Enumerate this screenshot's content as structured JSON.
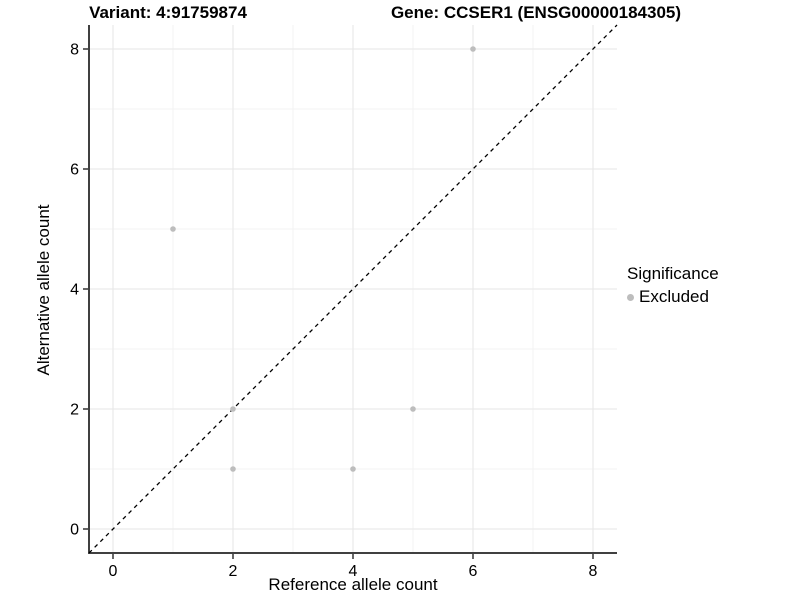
{
  "chart_data": {
    "type": "scatter",
    "title_left": "Variant: 4:91759874",
    "title_right": "Gene: CCSER1 (ENSG00000184305)",
    "xlabel": "Reference allele count",
    "ylabel": "Alternative allele count",
    "xlim": [
      -0.4,
      8.4
    ],
    "ylim": [
      -0.4,
      8.4
    ],
    "x_ticks": [
      0,
      2,
      4,
      6,
      8
    ],
    "y_ticks": [
      0,
      2,
      4,
      6,
      8
    ],
    "x_minor_ticks": [
      1,
      3,
      5,
      7
    ],
    "y_minor_ticks": [
      1,
      3,
      5,
      7
    ],
    "grid": "major+minor",
    "reference_line": {
      "type": "identity",
      "slope": 1,
      "intercept": 0,
      "style": "dashed",
      "color": "#000000"
    },
    "series": [
      {
        "name": "Excluded",
        "color": "#bdbdbd",
        "points": [
          [
            1,
            5
          ],
          [
            2,
            1
          ],
          [
            2,
            2
          ],
          [
            4,
            1
          ],
          [
            5,
            2
          ],
          [
            6,
            8
          ]
        ]
      }
    ],
    "legend": {
      "title": "Significance",
      "position": "right",
      "items": [
        {
          "label": "Excluded",
          "color": "#bdbdbd"
        }
      ]
    }
  },
  "colors": {
    "background": "#ffffff",
    "grid_major": "#e6e6e6",
    "grid_minor": "#f3f3f3",
    "axis_line": "#404040",
    "tick_mark": "#333333",
    "tick_label": "#000000",
    "text": "#000000"
  }
}
